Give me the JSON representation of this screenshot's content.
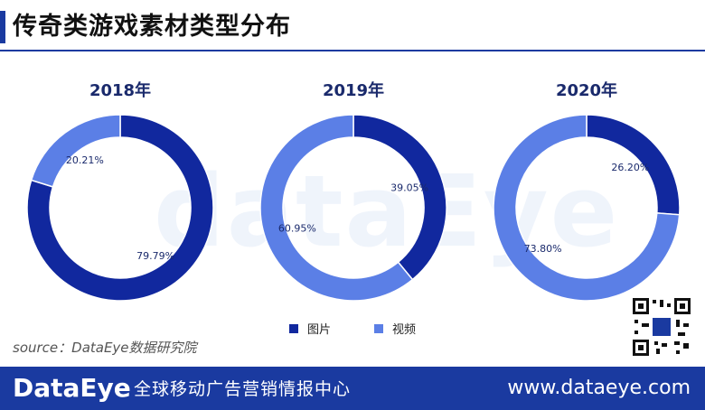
{
  "title": "传奇类游戏素材类型分布",
  "source": "source：DataEye数据研究院",
  "watermark": "dataEye",
  "footer": {
    "logo": "DataEye",
    "tagline": "全球移动广告营销情报中心",
    "url": "www.dataeye.com"
  },
  "colors": {
    "accent": "#1a3aa0",
    "series_dark": "#11289e",
    "series_light": "#5b7fe6",
    "footer_bg": "#1a3aa0"
  },
  "legend": [
    "图片",
    "视频"
  ],
  "chart_data": [
    {
      "type": "pie",
      "title": "2018年",
      "categories": [
        "图片",
        "视频"
      ],
      "values": [
        79.79,
        20.21
      ],
      "labels": [
        "79.79%",
        "20.21%"
      ]
    },
    {
      "type": "pie",
      "title": "2019年",
      "categories": [
        "图片",
        "视频"
      ],
      "values": [
        39.05,
        60.95
      ],
      "labels": [
        "39.05%",
        "60.95%"
      ]
    },
    {
      "type": "pie",
      "title": "2020年",
      "categories": [
        "图片",
        "视频"
      ],
      "values": [
        26.2,
        73.8
      ],
      "labels": [
        "26.20%",
        "73.80%"
      ]
    }
  ]
}
